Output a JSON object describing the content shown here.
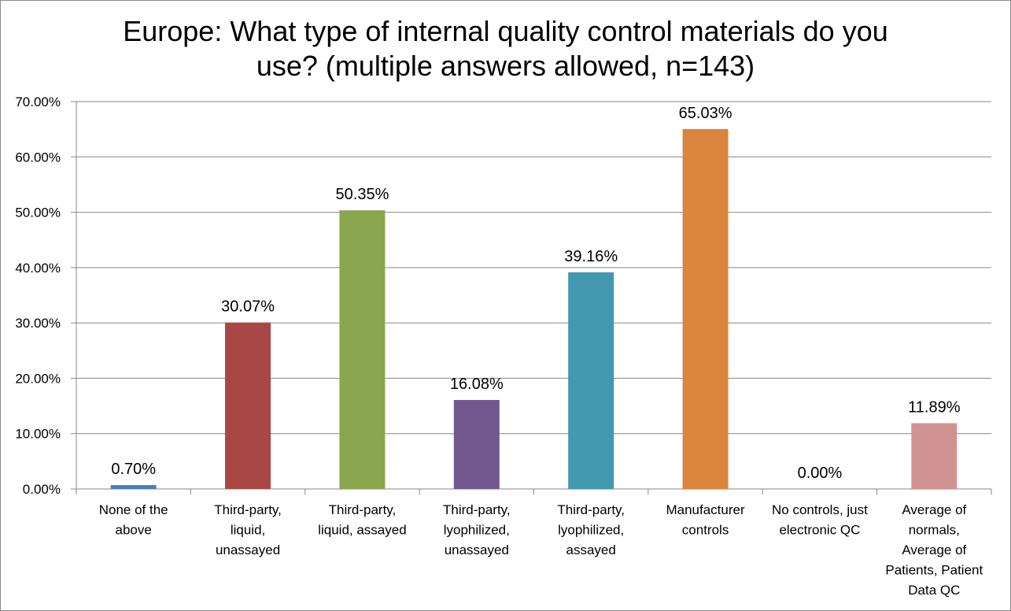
{
  "chart_data": {
    "type": "bar",
    "title_lines": [
      "Europe: What type of internal quality control materials do you",
      "use? (multiple answers allowed, n=143)"
    ],
    "categories": [
      [
        "None of the",
        "above"
      ],
      [
        "Third-party,",
        "liquid,",
        "unassayed"
      ],
      [
        "Third-party,",
        "liquid, assayed"
      ],
      [
        "Third-party,",
        "lyophilized,",
        "unassayed"
      ],
      [
        "Third-party,",
        "lyophilized,",
        "assayed"
      ],
      [
        "Manufacturer",
        "controls"
      ],
      [
        "No controls, just",
        "electronic QC"
      ],
      [
        "Average of",
        "normals,",
        "Average of",
        "Patients, Patient",
        "Data QC"
      ]
    ],
    "values": [
      0.7,
      30.07,
      50.35,
      16.08,
      39.16,
      65.03,
      0.0,
      11.89
    ],
    "data_labels": [
      "0.70%",
      "30.07%",
      "50.35%",
      "16.08%",
      "39.16%",
      "65.03%",
      "0.00%",
      "11.89%"
    ],
    "colors": [
      "#4a7ebb",
      "#a94745",
      "#89a54e",
      "#71588f",
      "#4198af",
      "#db843d",
      "#93a9cf",
      "#d19392"
    ],
    "ylim": [
      0,
      70
    ],
    "yticks": [
      "0.00%",
      "10.00%",
      "20.00%",
      "30.00%",
      "40.00%",
      "50.00%",
      "60.00%",
      "70.00%"
    ],
    "grid": true,
    "legend": "none"
  }
}
